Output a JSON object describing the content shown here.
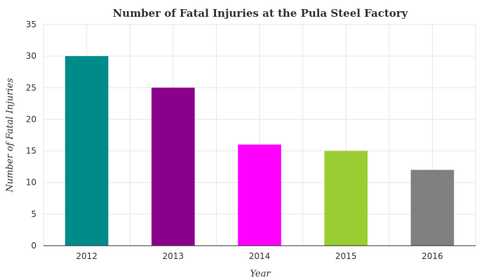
{
  "chart_data": {
    "type": "bar",
    "title": "Number of Fatal Injuries at the Pula Steel Factory",
    "xlabel": "Year",
    "ylabel": "Number of Fatal Injuries",
    "categories": [
      "2012",
      "2013",
      "2014",
      "2015",
      "2016"
    ],
    "values": [
      30,
      25,
      16,
      15,
      12
    ],
    "colors": [
      "#008b8b",
      "#8b008b",
      "#ff00ff",
      "#9acd32",
      "#808080"
    ],
    "ylim": [
      0,
      35
    ],
    "yticks": [
      "0",
      "5",
      "10",
      "15",
      "20",
      "25",
      "30",
      "35"
    ],
    "grid": true,
    "legend": "none"
  }
}
